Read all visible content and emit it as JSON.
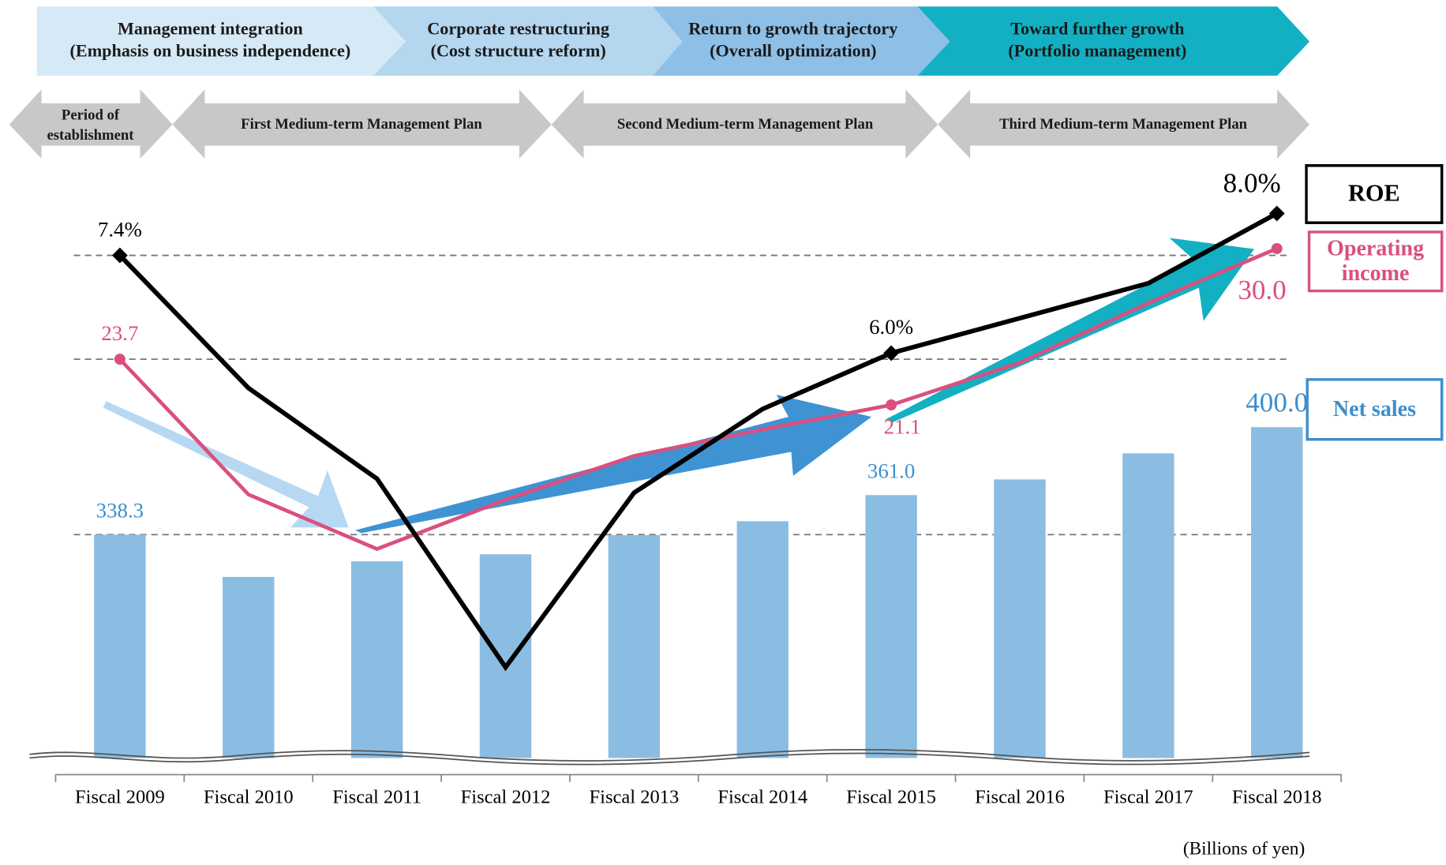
{
  "chart_data": {
    "type": "combo",
    "phases": [
      [
        "Management integration",
        "(Emphasis on business independence)"
      ],
      [
        "Corporate restructuring",
        "(Cost structure reform)"
      ],
      [
        "Return to growth trajectory",
        "(Overall optimization)"
      ],
      [
        "Toward further growth",
        "(Portfolio management)"
      ]
    ],
    "plans": [
      [
        "Period of",
        "establishment"
      ],
      [
        "First Medium-term Management Plan"
      ],
      [
        "Second Medium-term Management Plan"
      ],
      [
        "Third Medium-term Management Plan"
      ]
    ],
    "categories": [
      "Fiscal 2009",
      "Fiscal 2010",
      "Fiscal 2011",
      "Fiscal 2012",
      "Fiscal 2013",
      "Fiscal 2014",
      "Fiscal 2015",
      "Fiscal 2016",
      "Fiscal 2017",
      "Fiscal 2018"
    ],
    "series": [
      {
        "name": "Net sales",
        "type": "bar",
        "color": "#8bbde3",
        "label_color": "#3d8fcc",
        "ylim": [
          210,
          550
        ],
        "values": [
          338.3,
          314,
          323,
          327,
          338,
          346,
          361.0,
          370,
          385,
          400.0
        ],
        "value_labels": [
          "338.3",
          null,
          null,
          null,
          null,
          null,
          "361.0",
          null,
          null,
          "400.0"
        ]
      },
      {
        "name": "Operating income",
        "type": "line",
        "color": "#d9507f",
        "label_color": "#d9507f",
        "ylim": [
          1,
          34.7
        ],
        "values": [
          23.7,
          16.0,
          12.9,
          15.7,
          18.2,
          19.7,
          21.1,
          23.5,
          26.9,
          30.0
        ],
        "value_labels": [
          "23.7",
          null,
          null,
          null,
          null,
          null,
          "21.1",
          null,
          null,
          "30.0"
        ]
      },
      {
        "name": "ROE",
        "type": "line",
        "color": "#000000",
        "label_color": "#000000",
        "ylim": [
          0.2,
          8.68
        ],
        "values": [
          7.4,
          5.5,
          4.2,
          1.5,
          4.0,
          5.2,
          6.0,
          6.5,
          7.0,
          8.0
        ],
        "value_labels": [
          "7.4%",
          null,
          null,
          null,
          null,
          null,
          "6.0%",
          null,
          null,
          "8.0%"
        ]
      }
    ],
    "unit_note": "(Billions of yen)"
  }
}
